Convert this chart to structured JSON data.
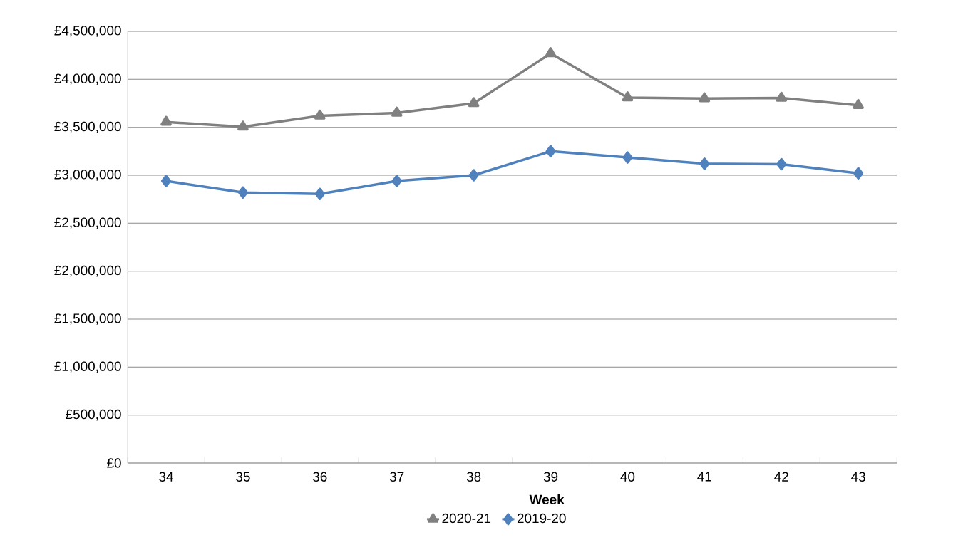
{
  "chart_data": {
    "type": "line",
    "xlabel": "Week",
    "categories": [
      "34",
      "35",
      "36",
      "37",
      "38",
      "39",
      "40",
      "41",
      "42",
      "43"
    ],
    "series": [
      {
        "name": "2020-21",
        "color": "#808080",
        "marker": "triangle",
        "values": [
          3555000,
          3505000,
          3620000,
          3650000,
          3750000,
          4270000,
          3810000,
          3800000,
          3805000,
          3730000
        ]
      },
      {
        "name": "2019-20",
        "color": "#4f81bd",
        "marker": "diamond",
        "values": [
          2940000,
          2820000,
          2805000,
          2940000,
          3000000,
          3250000,
          3185000,
          3120000,
          3115000,
          3020000
        ]
      }
    ],
    "ylim": [
      0,
      4500000
    ],
    "yticks": [
      {
        "value": 0,
        "label": "£0"
      },
      {
        "value": 500000,
        "label": "£500,000"
      },
      {
        "value": 1000000,
        "label": "£1,000,000"
      },
      {
        "value": 1500000,
        "label": "£1,500,000"
      },
      {
        "value": 2000000,
        "label": "£2,000,000"
      },
      {
        "value": 2500000,
        "label": "£2,500,000"
      },
      {
        "value": 3000000,
        "label": "£3,000,000"
      },
      {
        "value": 3500000,
        "label": "£3,500,000"
      },
      {
        "value": 4000000,
        "label": "£4,000,000"
      },
      {
        "value": 4500000,
        "label": "£4,500,000"
      }
    ],
    "grid": "y",
    "legend": "bottom",
    "line_style": "solid"
  }
}
